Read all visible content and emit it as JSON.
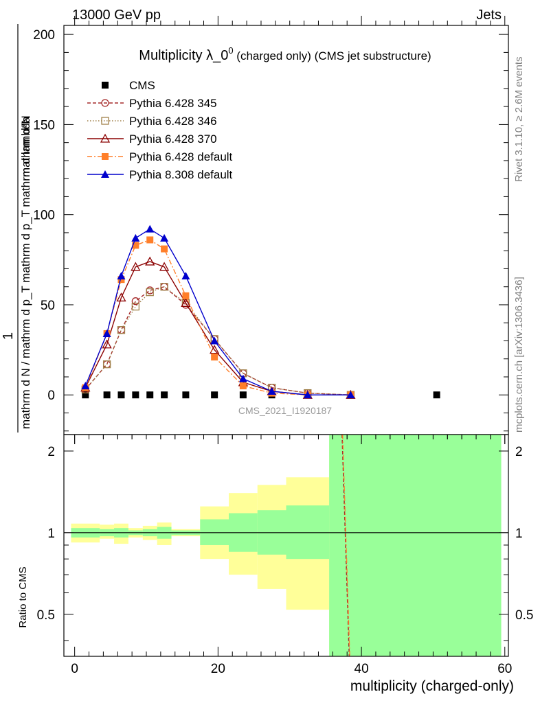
{
  "header": {
    "energy": "13000 GeV pp",
    "process": "Jets"
  },
  "side_labels": {
    "rivet": "Rivet 3.1.10, ≥ 2.6M events",
    "mcplots": "mcplots.cern.ch [arXiv:1306.3436]"
  },
  "chart_data": {
    "type": "line",
    "title_main": "Multiplicity λ_0",
    "title_sup": "0",
    "title_sub": " (charged only) (CMS jet substructure)",
    "watermark": "CMS_2021_I1920187",
    "xlabel": "multiplicity (charged-only)",
    "ylabel_top": {
      "numerator": "mathrm d²N",
      "one": "1",
      "denominator": "mathrm d N / mathrm d p_T mathrm d p_T mathrm d lambda"
    },
    "ylabel_ratio": "Ratio to CMS",
    "xlim": [
      -1.5,
      60.5
    ],
    "ylim": [
      -22,
      205
    ],
    "ratio_ylim": [
      0.35,
      2.3
    ],
    "x_ticks": [
      "0",
      "20",
      "40",
      "60"
    ],
    "y_ticks": [
      "0",
      "50",
      "100",
      "150",
      "200"
    ],
    "ratio_ticks": [
      "0.5",
      "1",
      "2"
    ],
    "series": [
      {
        "name": "CMS",
        "color": "#000000",
        "marker": "square",
        "dash": "",
        "x": [
          1.5,
          4.5,
          6.5,
          8.5,
          10.5,
          12.5,
          15.5,
          19.5,
          23.5,
          27.5,
          32.5,
          38.5,
          50.5
        ],
        "y": [
          0,
          0,
          0,
          0,
          0,
          0,
          0,
          0,
          0,
          0,
          0,
          0,
          0
        ]
      },
      {
        "name": "Pythia 6.428 345",
        "color": "#a52a2a",
        "marker": "circle-open",
        "dash": "5,3",
        "x": [
          1.5,
          4.5,
          6.5,
          8.5,
          10.5,
          12.5,
          15.5,
          19.5,
          23.5,
          27.5,
          32.5,
          38.5
        ],
        "y": [
          3,
          17,
          36,
          52,
          58,
          60,
          50,
          31,
          12,
          4,
          1,
          0
        ]
      },
      {
        "name": "Pythia 6.428 346",
        "color": "#a0814a",
        "marker": "square-open",
        "dash": "1.5,2.5",
        "x": [
          1.5,
          4.5,
          6.5,
          8.5,
          10.5,
          12.5,
          15.5,
          19.5,
          23.5,
          27.5,
          32.5,
          38.5
        ],
        "y": [
          3,
          17,
          36,
          49,
          57,
          60,
          51,
          31,
          12,
          4,
          1,
          0
        ]
      },
      {
        "name": "Pythia 6.428 370",
        "color": "#8b0000",
        "marker": "triangle-open",
        "dash": "",
        "x": [
          1.5,
          4.5,
          6.5,
          8.5,
          10.5,
          12.5,
          15.5,
          19.5,
          23.5,
          27.5,
          32.5,
          38.5
        ],
        "y": [
          4,
          28,
          54,
          71,
          74,
          71,
          51,
          25,
          7,
          2,
          0,
          0
        ]
      },
      {
        "name": "Pythia 6.428 default",
        "color": "#ff7f2a",
        "marker": "square",
        "dash": "7,3,2,3",
        "x": [
          1.5,
          4.5,
          6.5,
          8.5,
          10.5,
          12.5,
          15.5,
          19.5,
          23.5,
          27.5,
          32.5,
          38.5
        ],
        "y": [
          4,
          34,
          64,
          83,
          86,
          81,
          55,
          21,
          5,
          1,
          0,
          0
        ]
      },
      {
        "name": "Pythia 8.308 default",
        "color": "#0000cc",
        "marker": "triangle",
        "dash": "",
        "x": [
          1.5,
          4.5,
          6.5,
          8.5,
          10.5,
          12.5,
          15.5,
          19.5,
          23.5,
          27.5,
          32.5,
          38.5
        ],
        "y": [
          5,
          34,
          66,
          87,
          92,
          87,
          66,
          30,
          9,
          2,
          0,
          0
        ]
      }
    ],
    "ratio_bands": [
      {
        "x0": -0.5,
        "x1": 3.5,
        "y_lo": 0.92,
        "y_hi": 1.08,
        "g_lo": 0.96,
        "g_hi": 1.04
      },
      {
        "x0": 3.5,
        "x1": 5.5,
        "y_lo": 0.95,
        "y_hi": 1.07,
        "g_lo": 0.97,
        "g_hi": 1.03
      },
      {
        "x0": 5.5,
        "x1": 7.5,
        "y_lo": 0.91,
        "y_hi": 1.08,
        "g_lo": 0.96,
        "g_hi": 1.04
      },
      {
        "x0": 7.5,
        "x1": 9.5,
        "y_lo": 0.96,
        "y_hi": 1.04,
        "g_lo": 0.98,
        "g_hi": 1.02
      },
      {
        "x0": 9.5,
        "x1": 11.5,
        "y_lo": 0.94,
        "y_hi": 1.06,
        "g_lo": 0.97,
        "g_hi": 1.03
      },
      {
        "x0": 11.5,
        "x1": 13.5,
        "y_lo": 0.9,
        "y_hi": 1.09,
        "g_lo": 0.95,
        "g_hi": 1.05
      },
      {
        "x0": 13.5,
        "x1": 17.5,
        "y_lo": 0.97,
        "y_hi": 1.03,
        "g_lo": 0.98,
        "g_hi": 1.02
      },
      {
        "x0": 17.5,
        "x1": 21.5,
        "y_lo": 0.8,
        "y_hi": 1.25,
        "g_lo": 0.9,
        "g_hi": 1.12
      },
      {
        "x0": 21.5,
        "x1": 25.5,
        "y_lo": 0.7,
        "y_hi": 1.4,
        "g_lo": 0.85,
        "g_hi": 1.18
      },
      {
        "x0": 25.5,
        "x1": 29.5,
        "y_lo": 0.62,
        "y_hi": 1.5,
        "g_lo": 0.83,
        "g_hi": 1.21
      },
      {
        "x0": 29.5,
        "x1": 35.5,
        "y_lo": 0.52,
        "y_hi": 1.6,
        "g_lo": 0.8,
        "g_hi": 1.26
      },
      {
        "x0": 35.5,
        "x1": 59.5,
        "y_lo": 0.35,
        "y_hi": 2.3,
        "g_lo": 0.35,
        "g_hi": 2.3
      }
    ],
    "ratio_line": {
      "x": [
        37.3,
        38.3
      ],
      "y": [
        2.3,
        0.35
      ]
    }
  }
}
